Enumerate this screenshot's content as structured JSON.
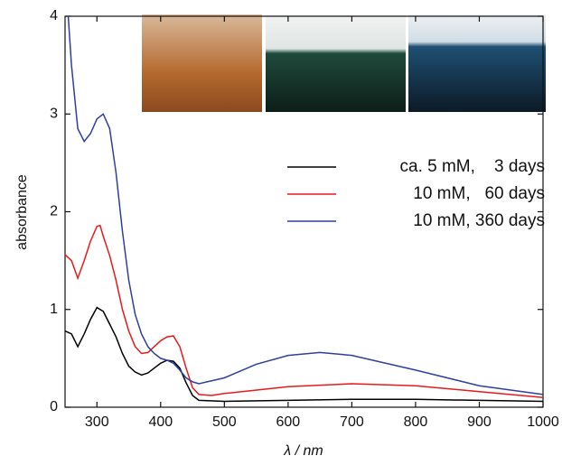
{
  "chart_data": {
    "type": "line",
    "x_label": "λ / nm",
    "y_label": "absorbance",
    "xlim": [
      250,
      1000
    ],
    "ylim": [
      0,
      4
    ],
    "xticks": [
      300,
      400,
      500,
      600,
      700,
      800,
      900,
      1000
    ],
    "yticks": [
      0,
      1,
      2,
      3,
      4
    ],
    "legend": "upper right",
    "series": [
      {
        "name": "ca. 5 mM,    3 days",
        "color": "#000000",
        "x": [
          250,
          260,
          270,
          280,
          290,
          300,
          310,
          320,
          330,
          340,
          350,
          360,
          370,
          380,
          390,
          400,
          410,
          420,
          430,
          440,
          450,
          460,
          500,
          600,
          700,
          800,
          900,
          1000
        ],
        "values": [
          0.78,
          0.75,
          0.62,
          0.75,
          0.9,
          1.02,
          0.98,
          0.85,
          0.72,
          0.55,
          0.42,
          0.36,
          0.33,
          0.35,
          0.4,
          0.45,
          0.48,
          0.47,
          0.4,
          0.25,
          0.12,
          0.07,
          0.06,
          0.07,
          0.08,
          0.08,
          0.07,
          0.06
        ]
      },
      {
        "name": "10 mM,   60 days",
        "color": "#e8191c",
        "x": [
          250,
          260,
          270,
          280,
          290,
          300,
          305,
          310,
          320,
          330,
          340,
          350,
          360,
          370,
          380,
          390,
          400,
          410,
          420,
          430,
          440,
          450,
          460,
          480,
          500,
          600,
          700,
          800,
          900,
          1000
        ],
        "values": [
          1.56,
          1.5,
          1.32,
          1.5,
          1.7,
          1.85,
          1.86,
          1.75,
          1.55,
          1.3,
          1.0,
          0.78,
          0.62,
          0.55,
          0.56,
          0.62,
          0.68,
          0.72,
          0.73,
          0.62,
          0.4,
          0.2,
          0.13,
          0.12,
          0.14,
          0.21,
          0.24,
          0.22,
          0.16,
          0.1
        ]
      },
      {
        "name": "10 mM, 360 days",
        "color": "#2e3f9e",
        "x": [
          255,
          260,
          270,
          280,
          290,
          300,
          310,
          320,
          330,
          340,
          350,
          360,
          370,
          380,
          390,
          400,
          410,
          420,
          430,
          440,
          450,
          460,
          500,
          550,
          600,
          650,
          700,
          800,
          900,
          1000
        ],
        "values": [
          4.0,
          3.5,
          2.85,
          2.72,
          2.8,
          2.95,
          3.0,
          2.85,
          2.4,
          1.8,
          1.3,
          0.95,
          0.75,
          0.62,
          0.55,
          0.5,
          0.48,
          0.45,
          0.38,
          0.3,
          0.26,
          0.24,
          0.3,
          0.44,
          0.53,
          0.56,
          0.53,
          0.38,
          0.22,
          0.13
        ]
      }
    ]
  }
}
